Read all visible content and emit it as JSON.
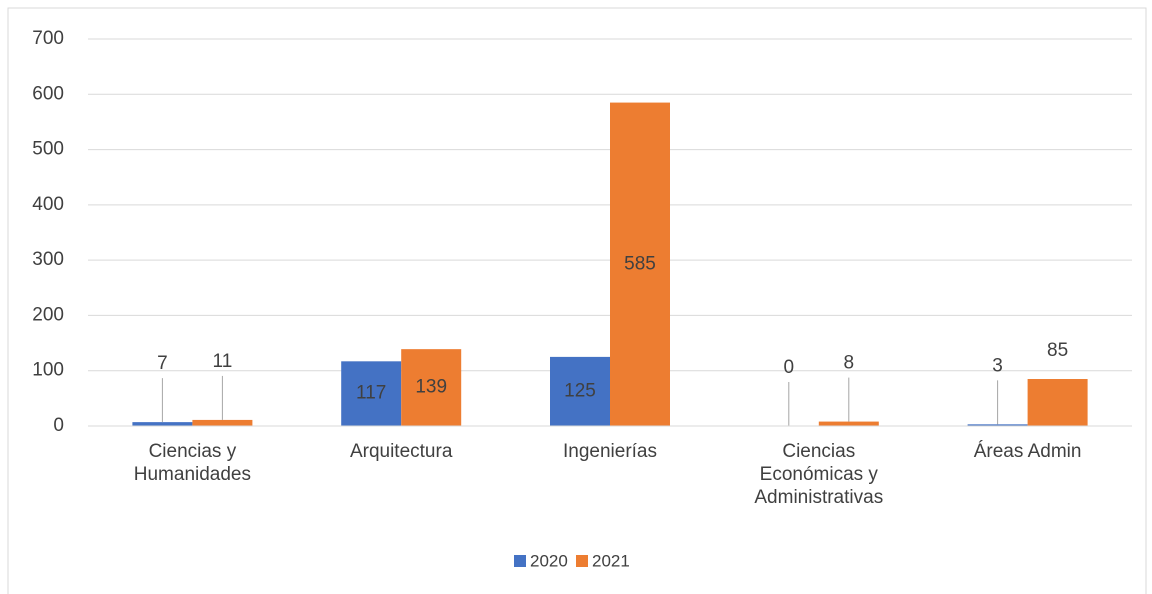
{
  "chart_data": {
    "type": "bar",
    "categories": [
      "Ciencias y Humanidades",
      "Arquitectura",
      "Ingenierías",
      "Ciencias Económicas y Administrativas",
      "Áreas Admin"
    ],
    "series": [
      {
        "name": "2020",
        "color": "#4472c4",
        "values": [
          7,
          117,
          125,
          0,
          3
        ]
      },
      {
        "name": "2021",
        "color": "#ed7d31",
        "values": [
          11,
          139,
          585,
          8,
          85
        ]
      }
    ],
    "ylim": [
      0,
      700
    ],
    "yticks": [
      0,
      100,
      200,
      300,
      400,
      500,
      600,
      700
    ],
    "grid": true,
    "legend": "bottom"
  }
}
